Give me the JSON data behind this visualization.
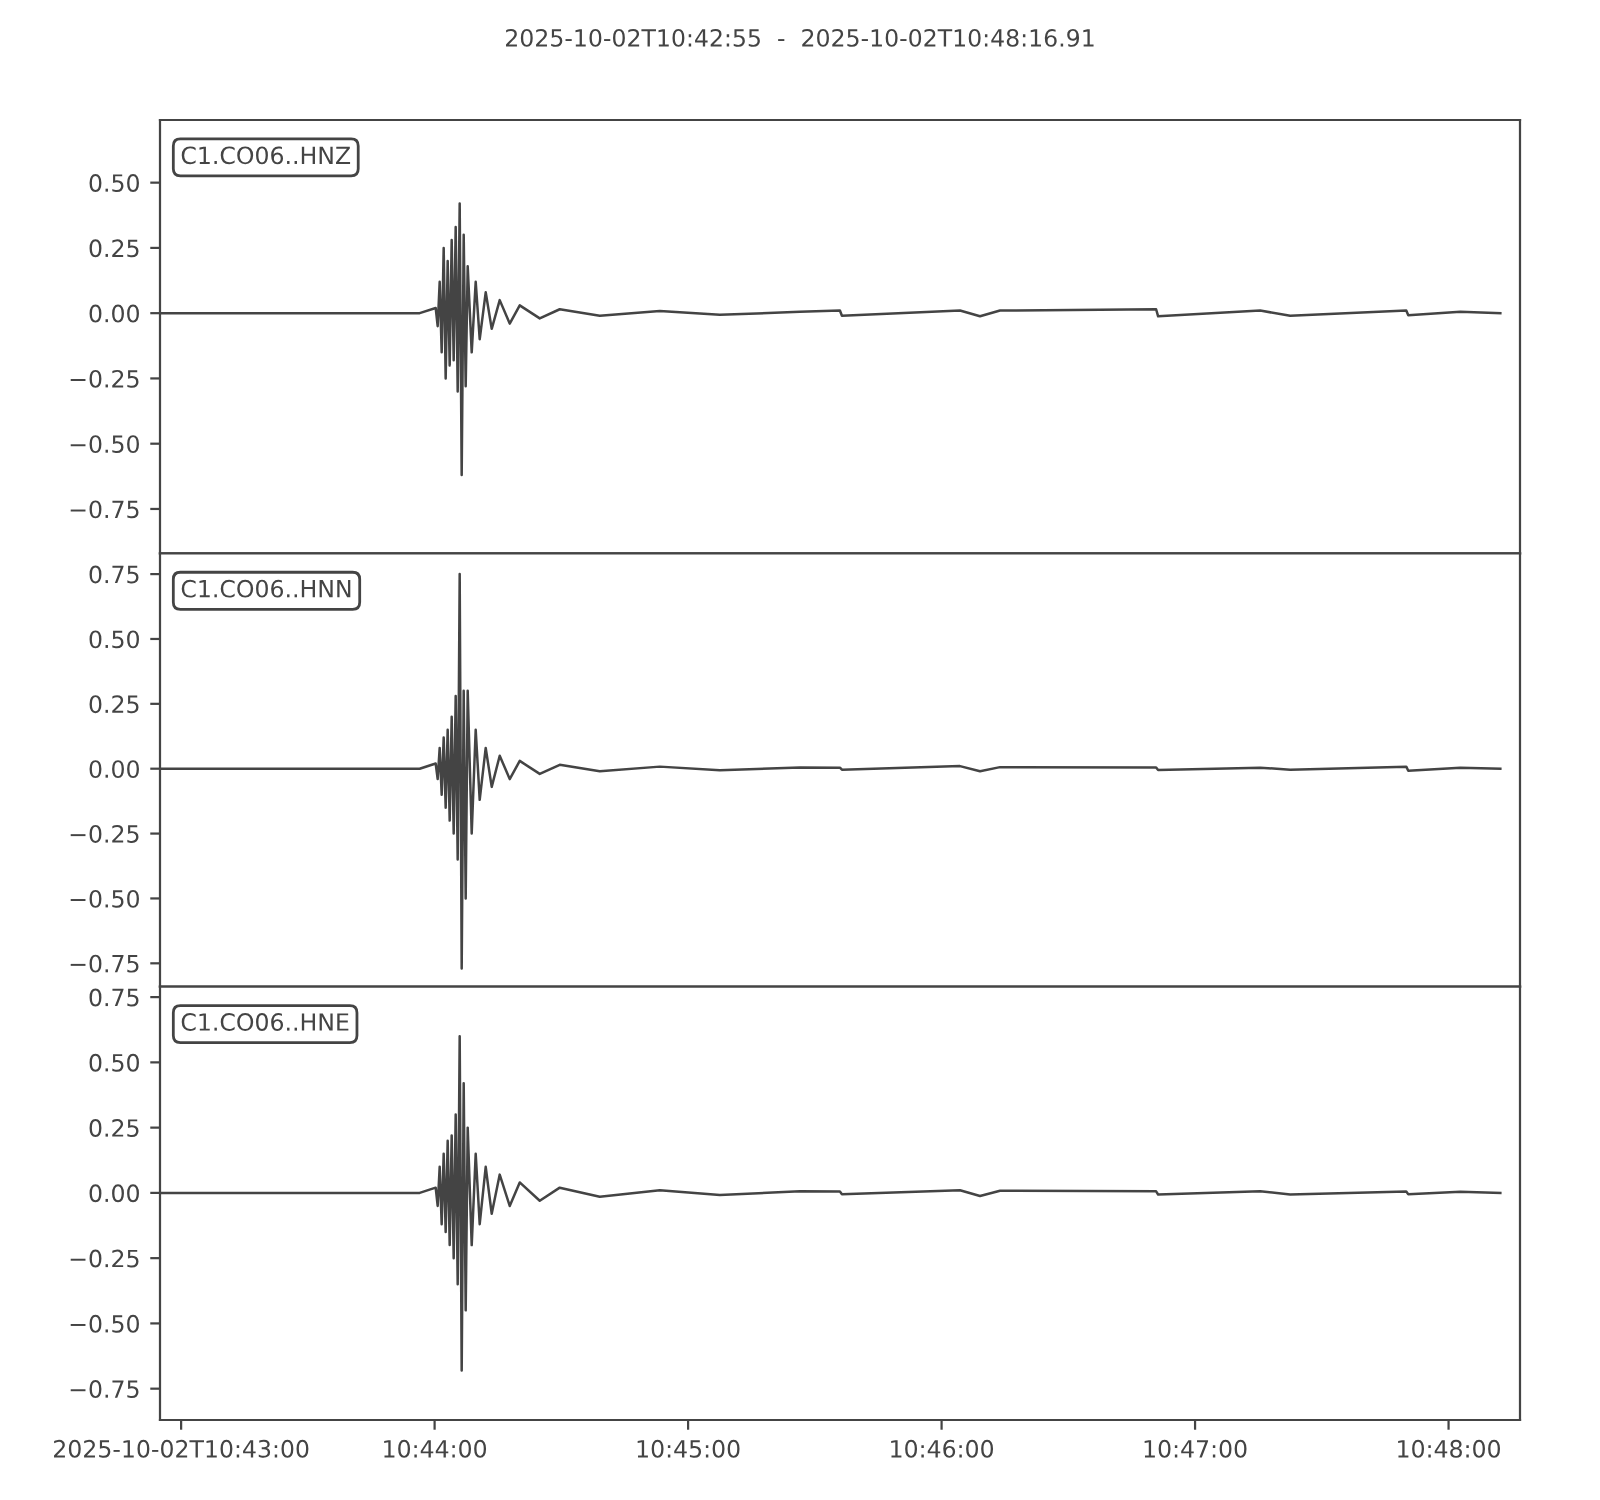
{
  "chart_data": [
    {
      "type": "line",
      "title": "2025-10-02T10:42:55  -  2025-10-02T10:48:16.91",
      "annotations": [
        "C1.CO06..HNZ"
      ],
      "tick_labels": "y",
      "x": [
        10.715278,
        10.724456,
        10.732351,
        10.733404,
        10.733535,
        10.733667,
        10.733798,
        10.73393,
        10.734061,
        10.734193,
        10.734325,
        10.734456,
        10.734588,
        10.734719,
        10.734851,
        10.734982,
        10.735114,
        10.735246,
        10.735377,
        10.735509,
        10.735772,
        10.736035,
        10.736298,
        10.736693,
        10.737088,
        10.737614,
        10.738272,
        10.73893,
        10.740246,
        10.741561,
        10.744193,
        10.74814,
        10.752088,
        10.757351,
        10.759982,
        10.760114,
        10.767877,
        10.769193,
        10.770509,
        10.780772,
        10.780904,
        10.787614,
        10.789588,
        10.797219,
        10.797351,
        10.800772,
        10.803404
      ],
      "series": [
        {
          "color": "#444444",
          "values": [
            0,
            0,
            0,
            0.02,
            -0.05,
            0.12,
            -0.15,
            0.25,
            -0.25,
            0.2,
            -0.2,
            0.28,
            -0.18,
            0.33,
            -0.3,
            0.42,
            -0.62,
            0.3,
            -0.28,
            0.18,
            -0.15,
            0.12,
            -0.1,
            0.08,
            -0.06,
            0.05,
            -0.04,
            0.03,
            -0.02,
            0.015,
            -0.01,
            0.008,
            -0.006,
            0.005,
            0.01,
            -0.01,
            0.01,
            -0.012,
            0.01,
            0.015,
            -0.012,
            0.01,
            -0.01,
            0.01,
            -0.008,
            0.005,
            0
          ]
        }
      ],
      "xlim": [
        10.715278,
        10.804697
      ],
      "ylim": [
        -0.92,
        0.74
      ],
      "yticks": [
        {
          "value": -0.75,
          "label": "−0.75"
        },
        {
          "value": -0.5,
          "label": "−0.50"
        },
        {
          "value": -0.25,
          "label": "−0.25"
        },
        {
          "value": 0,
          "label": "0.00"
        },
        {
          "value": 0.25,
          "label": "0.25"
        },
        {
          "value": 0.5,
          "label": "0.50"
        }
      ]
    },
    {
      "type": "line",
      "annotations": [
        "C1.CO06..HNN"
      ],
      "tick_labels": "y",
      "x": [
        10.715278,
        10.724456,
        10.732351,
        10.733404,
        10.733535,
        10.733667,
        10.733798,
        10.73393,
        10.734061,
        10.734193,
        10.734325,
        10.734456,
        10.734588,
        10.734719,
        10.734851,
        10.734982,
        10.735114,
        10.735246,
        10.735377,
        10.735509,
        10.735772,
        10.736035,
        10.736298,
        10.736693,
        10.737088,
        10.737614,
        10.738272,
        10.73893,
        10.740246,
        10.741561,
        10.744193,
        10.74814,
        10.752088,
        10.757351,
        10.759982,
        10.760114,
        10.767877,
        10.769193,
        10.770509,
        10.780772,
        10.780904,
        10.787614,
        10.789588,
        10.797219,
        10.797351,
        10.800772,
        10.803404
      ],
      "series": [
        {
          "color": "#444444",
          "values": [
            0,
            0,
            0,
            0.02,
            -0.04,
            0.08,
            -0.1,
            0.12,
            -0.15,
            0.15,
            -0.2,
            0.2,
            -0.25,
            0.28,
            -0.35,
            0.75,
            -0.77,
            0.3,
            -0.5,
            0.3,
            -0.25,
            0.15,
            -0.12,
            0.08,
            -0.07,
            0.05,
            -0.04,
            0.03,
            -0.02,
            0.015,
            -0.01,
            0.008,
            -0.006,
            0.005,
            0.004,
            -0.004,
            0.01,
            -0.01,
            0.006,
            0.005,
            -0.005,
            0.004,
            -0.004,
            0.008,
            -0.008,
            0.004,
            0
          ]
        }
      ],
      "xlim": [
        10.715278,
        10.804697
      ],
      "ylim": [
        -0.84,
        0.83
      ],
      "yticks": [
        {
          "value": -0.75,
          "label": "−0.75"
        },
        {
          "value": -0.5,
          "label": "−0.50"
        },
        {
          "value": -0.25,
          "label": "−0.25"
        },
        {
          "value": 0,
          "label": "0.00"
        },
        {
          "value": 0.25,
          "label": "0.25"
        },
        {
          "value": 0.5,
          "label": "0.50"
        },
        {
          "value": 0.75,
          "label": "0.75"
        }
      ]
    },
    {
      "type": "line",
      "annotations": [
        "C1.CO06..HNE"
      ],
      "x": [
        10.715278,
        10.724456,
        10.732351,
        10.733404,
        10.733535,
        10.733667,
        10.733798,
        10.73393,
        10.734061,
        10.734193,
        10.734325,
        10.734456,
        10.734588,
        10.734719,
        10.734851,
        10.734982,
        10.735114,
        10.735246,
        10.735377,
        10.735509,
        10.735772,
        10.736035,
        10.736298,
        10.736693,
        10.737088,
        10.737614,
        10.738272,
        10.73893,
        10.740246,
        10.741561,
        10.744193,
        10.74814,
        10.752088,
        10.757351,
        10.759982,
        10.760114,
        10.767877,
        10.769193,
        10.770509,
        10.780772,
        10.780904,
        10.787614,
        10.789588,
        10.797219,
        10.797351,
        10.800772,
        10.803404
      ],
      "series": [
        {
          "color": "#444444",
          "values": [
            0,
            0,
            0,
            0.02,
            -0.05,
            0.1,
            -0.12,
            0.15,
            -0.15,
            0.2,
            -0.2,
            0.22,
            -0.25,
            0.3,
            -0.35,
            0.6,
            -0.68,
            0.42,
            -0.45,
            0.25,
            -0.2,
            0.15,
            -0.12,
            0.1,
            -0.08,
            0.07,
            -0.05,
            0.04,
            -0.03,
            0.02,
            -0.015,
            0.01,
            -0.008,
            0.006,
            0.005,
            -0.005,
            0.01,
            -0.012,
            0.008,
            0.006,
            -0.006,
            0.006,
            -0.006,
            0.005,
            -0.005,
            0.004,
            0
          ]
        }
      ],
      "xlim": [
        10.715278,
        10.804697
      ],
      "ylim": [
        -0.87,
        0.79
      ],
      "xticks": [
        {
          "value": 10.716667,
          "label": "2025-10-02T10:43:00"
        },
        {
          "value": 10.733333,
          "label": "10:44:00"
        },
        {
          "value": 10.75,
          "label": "10:45:00"
        },
        {
          "value": 10.766667,
          "label": "10:46:00"
        },
        {
          "value": 10.783333,
          "label": "10:47:00"
        },
        {
          "value": 10.8,
          "label": "10:48:00"
        }
      ],
      "yticks": [
        {
          "value": -0.75,
          "label": "−0.75"
        },
        {
          "value": -0.5,
          "label": "−0.50"
        },
        {
          "value": -0.25,
          "label": "−0.25"
        },
        {
          "value": 0,
          "label": "0.00"
        },
        {
          "value": 0.25,
          "label": "0.25"
        },
        {
          "value": 0.5,
          "label": "0.50"
        },
        {
          "value": 0.75,
          "label": "0.75"
        }
      ]
    }
  ]
}
